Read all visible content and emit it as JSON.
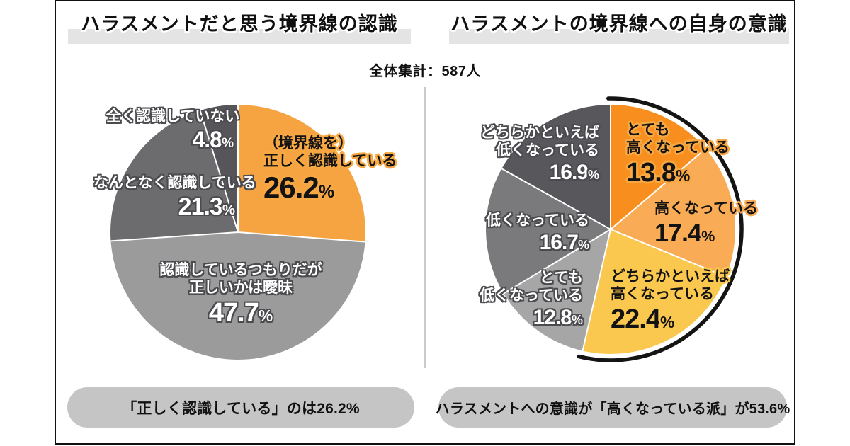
{
  "ui": {
    "percent_sign": "%",
    "left_title": "ハラスメントだと思う境界線の認識",
    "right_title": "ハラスメントの境界線への自身の意識",
    "subtitle": "全体集計：587人",
    "left_caption": "「正しく認識している」のは26.2%",
    "right_caption": "ハラスメントへの意識が「高くなっている派」が53.6%",
    "colors": {
      "frame_border": "#111111",
      "title_band": "#E4E4E4",
      "caption_pill": "#C5C5C5",
      "divider": "#CBCBCB",
      "slice_separator": "#FFFFFF"
    }
  },
  "chart_data": [
    {
      "type": "pie",
      "title": "ハラスメントだと思う境界線の認識",
      "start_angle_deg": 0,
      "direction": "clockwise",
      "slices": [
        {
          "lines": [
            "（境界線を）",
            "正しく認識している"
          ],
          "pct": "26.2",
          "value": 26.2,
          "color": "#F6A441"
        },
        {
          "lines": [
            "認識しているつもりだが",
            "正しいかは曖昧"
          ],
          "pct": "47.7",
          "value": 47.7,
          "color": "#9B9B9B"
        },
        {
          "lines": [
            "なんとなく認識している"
          ],
          "pct": "21.3",
          "value": 21.3,
          "color": "#6C6C6E"
        },
        {
          "lines": [
            "全く認識していない"
          ],
          "pct": "4.8",
          "value": 4.8,
          "color": "#56565A"
        }
      ]
    },
    {
      "type": "pie",
      "title": "ハラスメントの境界線への自身の意識",
      "start_angle_deg": 0,
      "direction": "clockwise",
      "slices": [
        {
          "lines": [
            "とても",
            "高くなっている"
          ],
          "pct": "13.8",
          "value": 13.8,
          "color": "#F78E1E"
        },
        {
          "lines": [
            "高くなっている"
          ],
          "pct": "17.4",
          "value": 17.4,
          "color": "#F9AC55"
        },
        {
          "lines": [
            "どちらかといえば",
            "高くなっている"
          ],
          "pct": "22.4",
          "value": 22.4,
          "color": "#FBC84F"
        },
        {
          "lines": [
            "とても",
            "低くなっている"
          ],
          "pct": "12.8",
          "value": 12.8,
          "color": "#A6A6A6"
        },
        {
          "lines": [
            "低くなっている"
          ],
          "pct": "16.7",
          "value": 16.7,
          "color": "#7A7A7C"
        },
        {
          "lines": [
            "どちらかといえば",
            "低くなっている"
          ],
          "pct": "16.9",
          "value": 16.9,
          "color": "#58585C"
        }
      ],
      "highlight_arc": {
        "label": "高くなっている派",
        "coverage_value": 53.6,
        "color": "#141414"
      }
    }
  ]
}
